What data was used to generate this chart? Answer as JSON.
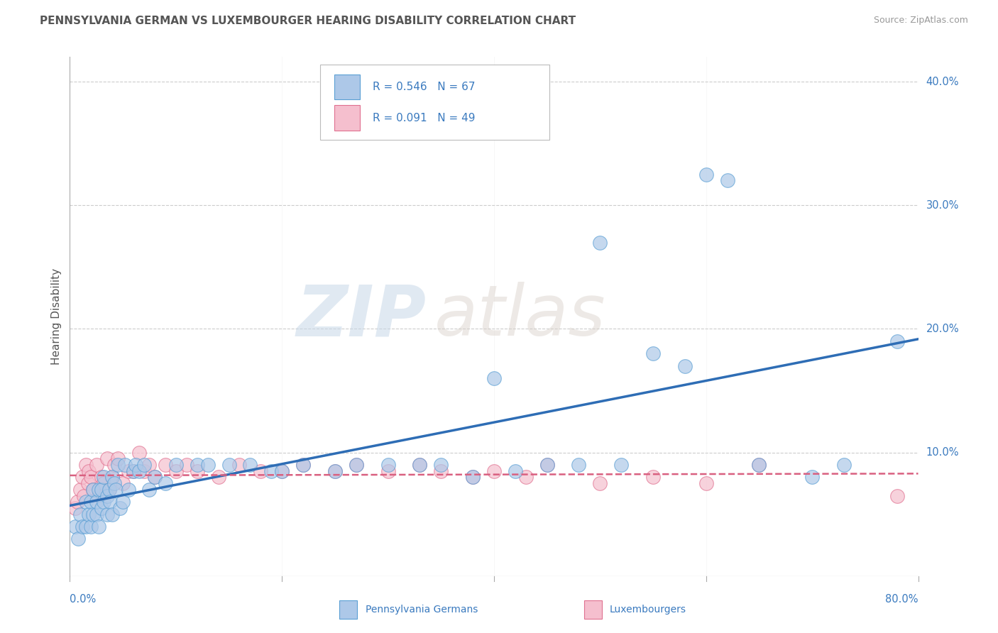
{
  "title": "PENNSYLVANIA GERMAN VS LUXEMBOURGER HEARING DISABILITY CORRELATION CHART",
  "source": "Source: ZipAtlas.com",
  "ylabel": "Hearing Disability",
  "r_penn": 0.546,
  "n_penn": 67,
  "r_lux": 0.091,
  "n_lux": 49,
  "xlim": [
    0.0,
    0.8
  ],
  "ylim": [
    0.0,
    0.42
  ],
  "yticks": [
    0.1,
    0.2,
    0.3,
    0.4
  ],
  "ytick_labels": [
    "10.0%",
    "20.0%",
    "30.0%",
    "40.0%"
  ],
  "xtick_positions": [
    0.0,
    0.2,
    0.4,
    0.6,
    0.8
  ],
  "bg_color": "#ffffff",
  "grid_color": "#cccccc",
  "penn_fill": "#adc8e8",
  "penn_edge": "#5a9fd4",
  "lux_fill": "#f5bfce",
  "lux_edge": "#e07090",
  "penn_line_color": "#2e6db5",
  "lux_line_color": "#d96080",
  "legend_text_color": "#3a7abf",
  "title_color": "#555555",
  "source_color": "#999999",
  "axis_label_color": "#3a7abf",
  "watermark_zip": "ZIP",
  "watermark_atlas": "atlas",
  "penn_label": "Pennsylvania Germans",
  "lux_label": "Luxembourgers",
  "penn_scatter_x": [
    0.005,
    0.008,
    0.01,
    0.012,
    0.015,
    0.015,
    0.018,
    0.02,
    0.02,
    0.022,
    0.022,
    0.025,
    0.025,
    0.027,
    0.027,
    0.03,
    0.03,
    0.032,
    0.032,
    0.035,
    0.035,
    0.037,
    0.038,
    0.04,
    0.04,
    0.042,
    0.043,
    0.045,
    0.047,
    0.05,
    0.052,
    0.055,
    0.06,
    0.062,
    0.065,
    0.07,
    0.075,
    0.08,
    0.09,
    0.1,
    0.12,
    0.13,
    0.15,
    0.17,
    0.19,
    0.2,
    0.22,
    0.25,
    0.27,
    0.3,
    0.33,
    0.35,
    0.38,
    0.4,
    0.42,
    0.45,
    0.48,
    0.5,
    0.52,
    0.55,
    0.58,
    0.6,
    0.62,
    0.65,
    0.7,
    0.73,
    0.78
  ],
  "penn_scatter_y": [
    0.04,
    0.03,
    0.05,
    0.04,
    0.06,
    0.04,
    0.05,
    0.06,
    0.04,
    0.05,
    0.07,
    0.05,
    0.06,
    0.04,
    0.07,
    0.055,
    0.07,
    0.06,
    0.08,
    0.065,
    0.05,
    0.07,
    0.06,
    0.08,
    0.05,
    0.075,
    0.07,
    0.09,
    0.055,
    0.06,
    0.09,
    0.07,
    0.085,
    0.09,
    0.085,
    0.09,
    0.07,
    0.08,
    0.075,
    0.09,
    0.09,
    0.09,
    0.09,
    0.09,
    0.085,
    0.085,
    0.09,
    0.085,
    0.09,
    0.09,
    0.09,
    0.09,
    0.08,
    0.16,
    0.085,
    0.09,
    0.09,
    0.27,
    0.09,
    0.18,
    0.17,
    0.325,
    0.32,
    0.09,
    0.08,
    0.09,
    0.19
  ],
  "lux_scatter_x": [
    0.005,
    0.007,
    0.01,
    0.012,
    0.013,
    0.015,
    0.017,
    0.018,
    0.02,
    0.022,
    0.025,
    0.027,
    0.03,
    0.032,
    0.035,
    0.037,
    0.04,
    0.042,
    0.045,
    0.05,
    0.055,
    0.06,
    0.065,
    0.07,
    0.075,
    0.08,
    0.09,
    0.1,
    0.11,
    0.12,
    0.14,
    0.16,
    0.18,
    0.2,
    0.22,
    0.25,
    0.27,
    0.3,
    0.33,
    0.35,
    0.38,
    0.4,
    0.43,
    0.45,
    0.5,
    0.55,
    0.6,
    0.65,
    0.78
  ],
  "lux_scatter_y": [
    0.055,
    0.06,
    0.07,
    0.08,
    0.065,
    0.09,
    0.075,
    0.085,
    0.08,
    0.07,
    0.09,
    0.065,
    0.08,
    0.075,
    0.095,
    0.07,
    0.08,
    0.09,
    0.095,
    0.075,
    0.085,
    0.085,
    0.1,
    0.085,
    0.09,
    0.08,
    0.09,
    0.085,
    0.09,
    0.085,
    0.08,
    0.09,
    0.085,
    0.085,
    0.09,
    0.085,
    0.09,
    0.085,
    0.09,
    0.085,
    0.08,
    0.085,
    0.08,
    0.09,
    0.075,
    0.08,
    0.075,
    0.09,
    0.065
  ]
}
